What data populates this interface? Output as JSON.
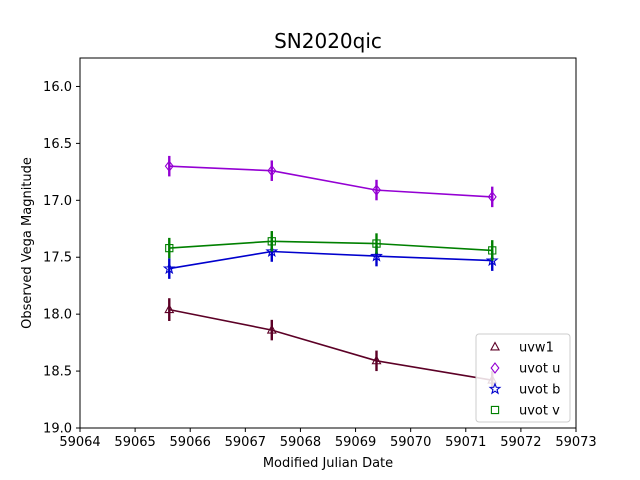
{
  "chart_data": {
    "type": "line",
    "title": "SN2020qic",
    "xlabel": "Modified Julian Date",
    "ylabel": "Observed Vega Magnitude",
    "xlim": [
      59064,
      59073
    ],
    "ylim": [
      19.0,
      15.75
    ],
    "y_inverted": true,
    "xticks": [
      "59064",
      "59065",
      "59066",
      "59067",
      "59068",
      "59069",
      "59070",
      "59071",
      "59072",
      "59073"
    ],
    "yticks": [
      "16.0",
      "16.5",
      "17.0",
      "17.5",
      "18.0",
      "18.5",
      "19.0"
    ],
    "grid": false,
    "legend_position": "bottom-right",
    "series": [
      {
        "name": "uvw1",
        "color": "#5c0026",
        "marker": "triangle",
        "x": [
          59065.62,
          59067.48,
          59069.38,
          59071.48
        ],
        "y": [
          17.96,
          18.14,
          18.41,
          18.58
        ],
        "err": [
          0.1,
          0.09,
          0.09,
          0.08
        ]
      },
      {
        "name": "uvot u",
        "color": "#9400d3",
        "marker": "diamond",
        "x": [
          59065.62,
          59067.48,
          59069.38,
          59071.48
        ],
        "y": [
          16.7,
          16.74,
          16.91,
          16.97
        ],
        "err": [
          0.09,
          0.09,
          0.09,
          0.09
        ]
      },
      {
        "name": "uvot b",
        "color": "#0000cd",
        "marker": "star",
        "x": [
          59065.62,
          59067.48,
          59069.38,
          59071.48
        ],
        "y": [
          17.6,
          17.45,
          17.49,
          17.53
        ],
        "err": [
          0.09,
          0.09,
          0.09,
          0.09
        ]
      },
      {
        "name": "uvot v",
        "color": "#008000",
        "marker": "square",
        "x": [
          59065.62,
          59067.48,
          59069.38,
          59071.48
        ],
        "y": [
          17.42,
          17.36,
          17.38,
          17.44
        ],
        "err": [
          0.09,
          0.09,
          0.09,
          0.09
        ]
      }
    ]
  }
}
